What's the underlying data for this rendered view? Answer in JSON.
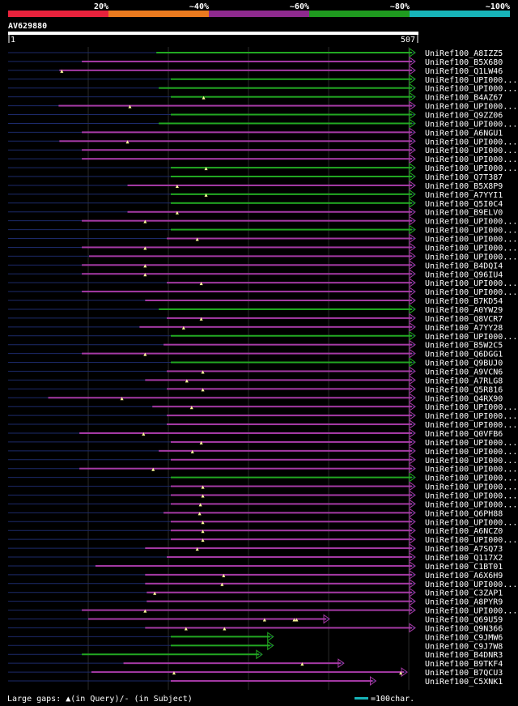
{
  "legend": {
    "segments": [
      {
        "label": "20%",
        "color": "#e8223c"
      },
      {
        "label": "~40%",
        "color": "#ea7a1f"
      },
      {
        "label": "~60%",
        "color": "#8e2a8e"
      },
      {
        "label": "~80%",
        "color": "#1f9a1f"
      },
      {
        "label": "~100%",
        "color": "#17b4b9"
      }
    ]
  },
  "query": {
    "id": "AV629880",
    "start_label": "1",
    "end_label": "507"
  },
  "colors": {
    "purple": "#a63aa6",
    "green": "#22a822",
    "faint": "#1c2a6a",
    "grid": "#2a2a2a"
  },
  "footer": {
    "left": "Large gaps: ▲(in Query)/- (in Subject)",
    "right": "=100char."
  },
  "chart_data": {
    "type": "alignment",
    "query_length": 507,
    "hits": [
      {
        "name": "UniRef100_A8IZZ5",
        "start": 185,
        "end": 507,
        "c": "g",
        "m": []
      },
      {
        "name": "UniRef100_B5X680",
        "start": 92,
        "end": 507,
        "c": "p",
        "m": []
      },
      {
        "name": "UniRef100_Q1LW46",
        "start": 64,
        "end": 507,
        "c": "p",
        "m": [
          67
        ]
      },
      {
        "name": "UniRef100_UPI000...",
        "start": 203,
        "end": 507,
        "c": "g",
        "m": []
      },
      {
        "name": "UniRef100_UPI000...",
        "start": 188,
        "end": 507,
        "c": "g",
        "m": []
      },
      {
        "name": "UniRef100_B4AZ67",
        "start": 203,
        "end": 507,
        "c": "g",
        "m": [
          244
        ]
      },
      {
        "name": "UniRef100_UPI000...",
        "start": 63,
        "end": 507,
        "c": "p",
        "m": [
          152
        ]
      },
      {
        "name": "UniRef100_Q9ZZ06",
        "start": 203,
        "end": 507,
        "c": "g",
        "m": []
      },
      {
        "name": "UniRef100_UPI000...",
        "start": 188,
        "end": 507,
        "c": "g",
        "m": []
      },
      {
        "name": "UniRef100_A6NGU1",
        "start": 92,
        "end": 507,
        "c": "p",
        "m": []
      },
      {
        "name": "UniRef100_UPI000...",
        "start": 64,
        "end": 507,
        "c": "p",
        "m": [
          149
        ]
      },
      {
        "name": "UniRef100_UPI000...",
        "start": 92,
        "end": 507,
        "c": "p",
        "m": []
      },
      {
        "name": "UniRef100_UPI000...",
        "start": 92,
        "end": 507,
        "c": "p",
        "m": []
      },
      {
        "name": "UniRef100_UPI000...",
        "start": 203,
        "end": 507,
        "c": "g",
        "m": [
          247
        ]
      },
      {
        "name": "UniRef100_Q7T387",
        "start": 203,
        "end": 507,
        "c": "g",
        "m": []
      },
      {
        "name": "UniRef100_B5X8P9",
        "start": 149,
        "end": 507,
        "c": "p",
        "m": [
          211
        ]
      },
      {
        "name": "UniRef100_A7YYI1",
        "start": 203,
        "end": 507,
        "c": "g",
        "m": [
          247
        ]
      },
      {
        "name": "UniRef100_Q5I0C4",
        "start": 203,
        "end": 507,
        "c": "g",
        "m": []
      },
      {
        "name": "UniRef100_B9ELV0",
        "start": 149,
        "end": 507,
        "c": "p",
        "m": [
          211
        ]
      },
      {
        "name": "UniRef100_UPI000...",
        "start": 92,
        "end": 507,
        "c": "p",
        "m": [
          171
        ]
      },
      {
        "name": "UniRef100_UPI000...",
        "start": 203,
        "end": 507,
        "c": "g",
        "m": []
      },
      {
        "name": "UniRef100_UPI000...",
        "start": 198,
        "end": 507,
        "c": "p",
        "m": [
          236
        ]
      },
      {
        "name": "UniRef100_UPI000...",
        "start": 92,
        "end": 507,
        "c": "p",
        "m": [
          171
        ]
      },
      {
        "name": "UniRef100_UPI000...",
        "start": 101,
        "end": 507,
        "c": "p",
        "m": []
      },
      {
        "name": "UniRef100_B4DQI4",
        "start": 92,
        "end": 507,
        "c": "p",
        "m": [
          171
        ]
      },
      {
        "name": "UniRef100_Q96IU4",
        "start": 92,
        "end": 507,
        "c": "p",
        "m": [
          171
        ]
      },
      {
        "name": "UniRef100_UPI000...",
        "start": 198,
        "end": 507,
        "c": "p",
        "m": [
          241
        ]
      },
      {
        "name": "UniRef100_UPI000...",
        "start": 92,
        "end": 507,
        "c": "p",
        "m": []
      },
      {
        "name": "UniRef100_B7KD54",
        "start": 171,
        "end": 507,
        "c": "p",
        "m": []
      },
      {
        "name": "UniRef100_A0YW29",
        "start": 188,
        "end": 507,
        "c": "g",
        "m": []
      },
      {
        "name": "UniRef100_Q8VCR7",
        "start": 198,
        "end": 507,
        "c": "p",
        "m": [
          241
        ]
      },
      {
        "name": "UniRef100_A7YY28",
        "start": 164,
        "end": 507,
        "c": "p",
        "m": [
          219
        ]
      },
      {
        "name": "UniRef100_UPI000...",
        "start": 203,
        "end": 507,
        "c": "g",
        "m": []
      },
      {
        "name": "UniRef100_B5W2C5",
        "start": 194,
        "end": 507,
        "c": "p",
        "m": []
      },
      {
        "name": "UniRef100_Q6DGG1",
        "start": 92,
        "end": 507,
        "c": "p",
        "m": [
          171
        ]
      },
      {
        "name": "UniRef100_Q9BUJ0",
        "start": 203,
        "end": 507,
        "c": "g",
        "m": []
      },
      {
        "name": "UniRef100_A9VCN6",
        "start": 198,
        "end": 507,
        "c": "p",
        "m": [
          243
        ]
      },
      {
        "name": "UniRef100_A7RLG8",
        "start": 171,
        "end": 507,
        "c": "p",
        "m": [
          223
        ]
      },
      {
        "name": "UniRef100_Q5R816",
        "start": 198,
        "end": 507,
        "c": "p",
        "m": [
          243
        ]
      },
      {
        "name": "UniRef100_Q4RX90",
        "start": 50,
        "end": 507,
        "c": "p",
        "m": [
          142
        ]
      },
      {
        "name": "UniRef100_UPI000...",
        "start": 180,
        "end": 507,
        "c": "p",
        "m": [
          229
        ]
      },
      {
        "name": "UniRef100_UPI000...",
        "start": 198,
        "end": 507,
        "c": "p",
        "m": []
      },
      {
        "name": "UniRef100_UPI000...",
        "start": 198,
        "end": 507,
        "c": "p",
        "m": []
      },
      {
        "name": "UniRef100_Q0VFB6",
        "start": 89,
        "end": 507,
        "c": "p",
        "m": [
          169
        ]
      },
      {
        "name": "UniRef100_UPI000...",
        "start": 203,
        "end": 507,
        "c": "p",
        "m": [
          241
        ]
      },
      {
        "name": "UniRef100_UPI000...",
        "start": 188,
        "end": 507,
        "c": "p",
        "m": [
          230
        ]
      },
      {
        "name": "UniRef100_UPI000...",
        "start": 203,
        "end": 507,
        "c": "p",
        "m": []
      },
      {
        "name": "UniRef100_UPI000...",
        "start": 89,
        "end": 507,
        "c": "p",
        "m": [
          181
        ]
      },
      {
        "name": "UniRef100_UPI000...",
        "start": 203,
        "end": 507,
        "c": "g",
        "m": []
      },
      {
        "name": "UniRef100_UPI000...",
        "start": 203,
        "end": 507,
        "c": "p",
        "m": [
          243
        ]
      },
      {
        "name": "UniRef100_UPI000...",
        "start": 203,
        "end": 507,
        "c": "p",
        "m": [
          243
        ]
      },
      {
        "name": "UniRef100_UPI000...",
        "start": 203,
        "end": 507,
        "c": "p",
        "m": [
          240
        ]
      },
      {
        "name": "UniRef100_Q6PH88",
        "start": 194,
        "end": 507,
        "c": "p",
        "m": [
          239
        ]
      },
      {
        "name": "UniRef100_UPI000...",
        "start": 203,
        "end": 507,
        "c": "p",
        "m": [
          243
        ]
      },
      {
        "name": "UniRef100_A6NCZ0",
        "start": 203,
        "end": 507,
        "c": "p",
        "m": [
          243
        ]
      },
      {
        "name": "UniRef100_UPI000...",
        "start": 203,
        "end": 507,
        "c": "p",
        "m": [
          243
        ]
      },
      {
        "name": "UniRef100_A7SQ73",
        "start": 171,
        "end": 507,
        "c": "p",
        "m": [
          236
        ]
      },
      {
        "name": "UniRef100_Q117X2",
        "start": 198,
        "end": 507,
        "c": "p",
        "m": []
      },
      {
        "name": "UniRef100_C1BT01",
        "start": 109,
        "end": 507,
        "c": "p",
        "m": []
      },
      {
        "name": "UniRef100_A6X6H9",
        "start": 171,
        "end": 507,
        "c": "p",
        "m": [
          269
        ]
      },
      {
        "name": "UniRef100_UPI000...",
        "start": 171,
        "end": 507,
        "c": "p",
        "m": [
          267
        ]
      },
      {
        "name": "UniRef100_C3ZAP1",
        "start": 173,
        "end": 507,
        "c": "p",
        "m": [
          183
        ]
      },
      {
        "name": "UniRef100_A8PYR9",
        "start": 173,
        "end": 507,
        "c": "p",
        "m": []
      },
      {
        "name": "UniRef100_UPI000...",
        "start": 92,
        "end": 507,
        "c": "p",
        "m": [
          171
        ]
      },
      {
        "name": "UniRef100_Q69U59",
        "start": 100,
        "end": 400,
        "c": "p",
        "m": [
          320,
          357,
          360
        ]
      },
      {
        "name": "UniRef100_Q9N366",
        "start": 171,
        "end": 507,
        "c": "p",
        "m": [
          222,
          270
        ]
      },
      {
        "name": "UniRef100_C9JMW6",
        "start": 203,
        "end": 330,
        "c": "g",
        "m": []
      },
      {
        "name": "UniRef100_C9J7W8",
        "start": 203,
        "end": 330,
        "c": "g",
        "m": []
      },
      {
        "name": "UniRef100_B4DNR3",
        "start": 92,
        "end": 316,
        "c": "g",
        "m": []
      },
      {
        "name": "UniRef100_B9TKF4",
        "start": 144,
        "end": 418,
        "c": "p",
        "m": [
          367
        ]
      },
      {
        "name": "UniRef100_B7QCU3",
        "start": 104,
        "end": 497,
        "c": "p",
        "m": [
          207,
          490
        ]
      },
      {
        "name": "UniRef100_C5XNK1",
        "start": 203,
        "end": 458,
        "c": "p",
        "m": []
      }
    ]
  }
}
